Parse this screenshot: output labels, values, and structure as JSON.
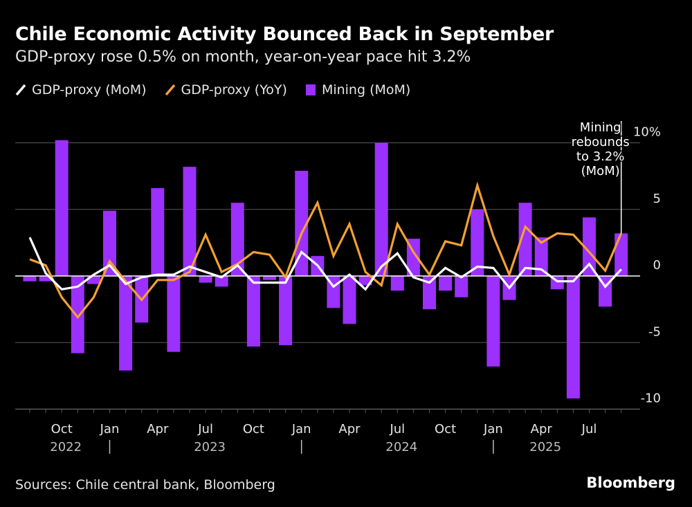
{
  "title": "Chile Economic Activity Bounced Back in September",
  "subtitle": "GDP-proxy rose 0.5% on month, year-on-year pace hit 3.2%",
  "footer": {
    "source": "Sources: Chile central bank, Bloomberg",
    "brand": "Bloomberg"
  },
  "colors": {
    "mom": "#ffffff",
    "yoy": "#f5a033",
    "mining": "#9b30ff",
    "background": "#000000",
    "grid": "#5a5a5a"
  },
  "chart_data": {
    "type": "bar+line",
    "title": "Chile Economic Activity Bounced Back in September",
    "legend_placement": "top-left",
    "grid": true,
    "ylim": [
      -10,
      10
    ],
    "y_ticks": [
      {
        "value": 10,
        "label": "10%"
      },
      {
        "value": 5,
        "label": "5"
      },
      {
        "value": 0,
        "label": "0"
      },
      {
        "value": -5,
        "label": "-5"
      },
      {
        "value": -10,
        "label": "-10"
      }
    ],
    "x": [
      "2022-08",
      "2022-09",
      "2022-10",
      "2022-11",
      "2022-12",
      "2023-01",
      "2023-02",
      "2023-03",
      "2023-04",
      "2023-05",
      "2023-06",
      "2023-07",
      "2023-08",
      "2023-09",
      "2023-10",
      "2023-11",
      "2023-12",
      "2024-01",
      "2024-02",
      "2024-03",
      "2024-04",
      "2024-05",
      "2024-06",
      "2024-07",
      "2024-08",
      "2024-09",
      "2024-10",
      "2024-11",
      "2024-12",
      "2025-01",
      "2025-02",
      "2025-03",
      "2025-04",
      "2025-05",
      "2025-06",
      "2025-07",
      "2025-08",
      "2025-09"
    ],
    "x_tick_labels": [
      {
        "x": "2022-10",
        "label": "Oct"
      },
      {
        "x": "2023-01",
        "label": "Jan"
      },
      {
        "x": "2023-04",
        "label": "Apr"
      },
      {
        "x": "2023-07",
        "label": "Jul"
      },
      {
        "x": "2023-10",
        "label": "Oct"
      },
      {
        "x": "2024-01",
        "label": "Jan"
      },
      {
        "x": "2024-04",
        "label": "Apr"
      },
      {
        "x": "2024-07",
        "label": "Jul"
      },
      {
        "x": "2024-10",
        "label": "Oct"
      },
      {
        "x": "2025-01",
        "label": "Jan"
      },
      {
        "x": "2025-04",
        "label": "Apr"
      },
      {
        "x": "2025-07",
        "label": "Jul"
      }
    ],
    "year_labels": [
      {
        "x": "2022-10",
        "label": "2022"
      },
      {
        "x": "2023-07",
        "label": "2023"
      },
      {
        "x": "2024-07",
        "label": "2024"
      },
      {
        "x": "2025-04",
        "label": "2025"
      }
    ],
    "year_separators": [
      "2023-01",
      "2024-01",
      "2025-01"
    ],
    "series": [
      {
        "name": "Mining (MoM)",
        "type": "bar",
        "values": [
          -0.4,
          -0.4,
          10.2,
          -5.8,
          -0.6,
          4.9,
          -7.1,
          -3.5,
          6.6,
          -5.7,
          8.2,
          -0.5,
          -0.8,
          5.5,
          -5.3,
          -0.3,
          -5.2,
          7.9,
          1.5,
          -2.4,
          -3.6,
          -0.7,
          10.0,
          -1.1,
          2.8,
          -2.5,
          -1.1,
          -1.6,
          5.0,
          -6.8,
          -1.8,
          5.5,
          2.9,
          -1.0,
          -9.2,
          4.4,
          -2.3,
          3.2
        ]
      },
      {
        "name": "GDP-proxy (MoM)",
        "type": "line",
        "values": [
          2.9,
          0.2,
          -1.0,
          -0.8,
          0.1,
          0.8,
          -0.6,
          -0.1,
          0.1,
          0.1,
          0.7,
          0.3,
          -0.1,
          0.8,
          -0.5,
          -0.5,
          -0.5,
          1.8,
          0.8,
          -0.8,
          0.1,
          -1.0,
          0.7,
          1.7,
          -0.1,
          -0.5,
          0.6,
          -0.1,
          0.7,
          0.6,
          -0.9,
          0.6,
          0.5,
          -0.4,
          -0.4,
          0.9,
          -0.8,
          0.5
        ]
      },
      {
        "name": "GDP-proxy (YoY)",
        "type": "line",
        "values": [
          1.25,
          0.8,
          -1.6,
          -3.1,
          -1.6,
          1.1,
          -0.4,
          -1.8,
          -0.3,
          -0.3,
          0.3,
          3.1,
          0.3,
          0.9,
          1.8,
          1.6,
          -0.1,
          3.2,
          5.5,
          1.5,
          3.9,
          0.3,
          -0.7,
          3.9,
          1.8,
          0.1,
          2.6,
          2.3,
          6.8,
          3.0,
          0.1,
          3.7,
          2.5,
          3.2,
          3.1,
          1.8,
          0.4,
          3.2
        ]
      }
    ],
    "annotations": [
      {
        "x": "2025-09",
        "lines": [
          "Mining",
          "rebounds",
          "to 3.2%",
          "(MoM)"
        ]
      }
    ]
  }
}
